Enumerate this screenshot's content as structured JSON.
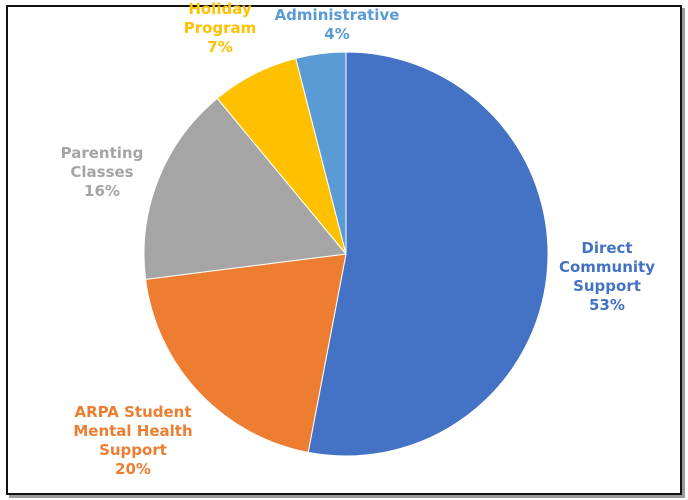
{
  "chart_data": {
    "type": "pie",
    "title": "",
    "start_angle_deg": 0,
    "direction": "clockwise",
    "slices": [
      {
        "label_lines": [
          "Direct",
          "Community",
          "Support"
        ],
        "value": 53,
        "value_label": "53%",
        "color": "#4472C4"
      },
      {
        "label_lines": [
          "ARPA Student",
          "Mental Health",
          "Support"
        ],
        "value": 20,
        "value_label": "20%",
        "color": "#ED7D31"
      },
      {
        "label_lines": [
          "Parenting",
          "Classes"
        ],
        "value": 16,
        "value_label": "16%",
        "color": "#A5A5A5"
      },
      {
        "label_lines": [
          "Holiday",
          "Program"
        ],
        "value": 7,
        "value_label": "7%",
        "color": "#FFC000"
      },
      {
        "label_lines": [
          "Administrative"
        ],
        "value": 4,
        "value_label": "4%",
        "color": "#5B9BD5"
      }
    ],
    "legend": "none"
  }
}
